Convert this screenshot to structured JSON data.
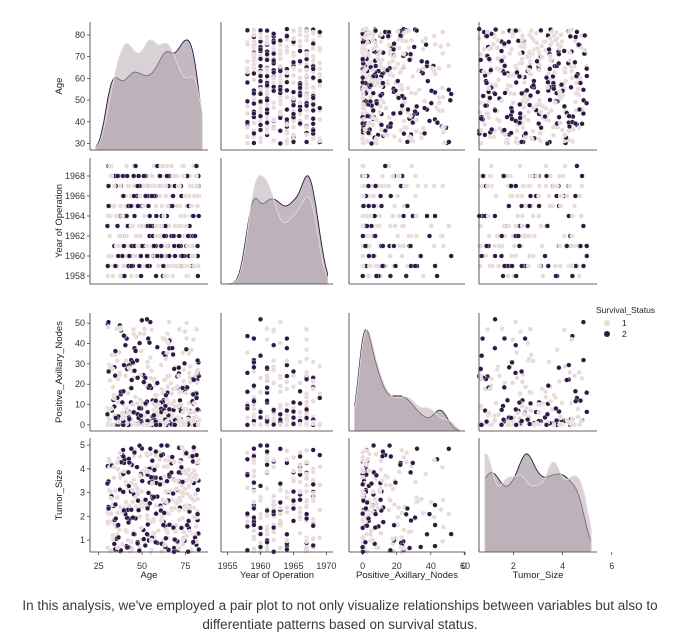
{
  "chart_data": {
    "type": "pairplot",
    "variables": [
      "Age",
      "Year of Operation",
      "Positive_Axillary_Nodes",
      "Tumor_Size"
    ],
    "axis_ranges": {
      "Age": [
        20,
        88
      ],
      "Year of Operation": [
        1954,
        1971
      ],
      "Positive_Axillary_Nodes": [
        -8,
        60
      ],
      "Tumor_Size": [
        0.6,
        5.4
      ]
    },
    "ticks": {
      "Age": [
        25,
        50,
        75
      ],
      "Year of Operation": [
        1955,
        1960,
        1965,
        1970
      ],
      "Positive_Axillary_Nodes": [
        0,
        20,
        40,
        60
      ],
      "Tumor_Size": [
        0,
        2,
        4,
        6
      ]
    },
    "row_ticks": {
      "Age": [
        30,
        40,
        50,
        60,
        70,
        80
      ],
      "Year of Operation": [
        1958,
        1960,
        1962,
        1964,
        1966,
        1968
      ],
      "Positive_Axillary_Nodes": [
        0,
        10,
        20,
        30,
        40,
        50
      ],
      "Tumor_Size": [
        1,
        2,
        3,
        4,
        5
      ]
    },
    "row_ranges": {
      "Age": [
        27,
        86
      ],
      "Year of Operation": [
        1957.2,
        1969.8
      ],
      "Positive_Axillary_Nodes": [
        -3,
        55
      ],
      "Tumor_Size": [
        0.5,
        5.3
      ]
    },
    "generation": {
      "n_points": 420,
      "Age": {
        "kind": "uniform",
        "min": 30,
        "max": 83
      },
      "Year of Operation": {
        "kind": "integer",
        "min": 1958,
        "max": 1969
      },
      "Positive_Axillary_Nodes": {
        "kind": "skewed",
        "min": 0,
        "max": 52
      },
      "Tumor_Size": {
        "kind": "uniform",
        "min": 0.5,
        "max": 5.0
      }
    },
    "hue": {
      "variable": "Survival_Status",
      "levels": [
        {
          "label": "1",
          "color": "#e8dada"
        },
        {
          "label": "2",
          "color": "#2b1a45"
        }
      ]
    },
    "kde_fill_color": "#b8adb5",
    "legend": {
      "title": "Survival_Status",
      "placement": "right"
    }
  },
  "caption": "In this analysis, we've employed a pair plot to not only visualize relationships between variables but also to differentiate patterns based on survival status."
}
